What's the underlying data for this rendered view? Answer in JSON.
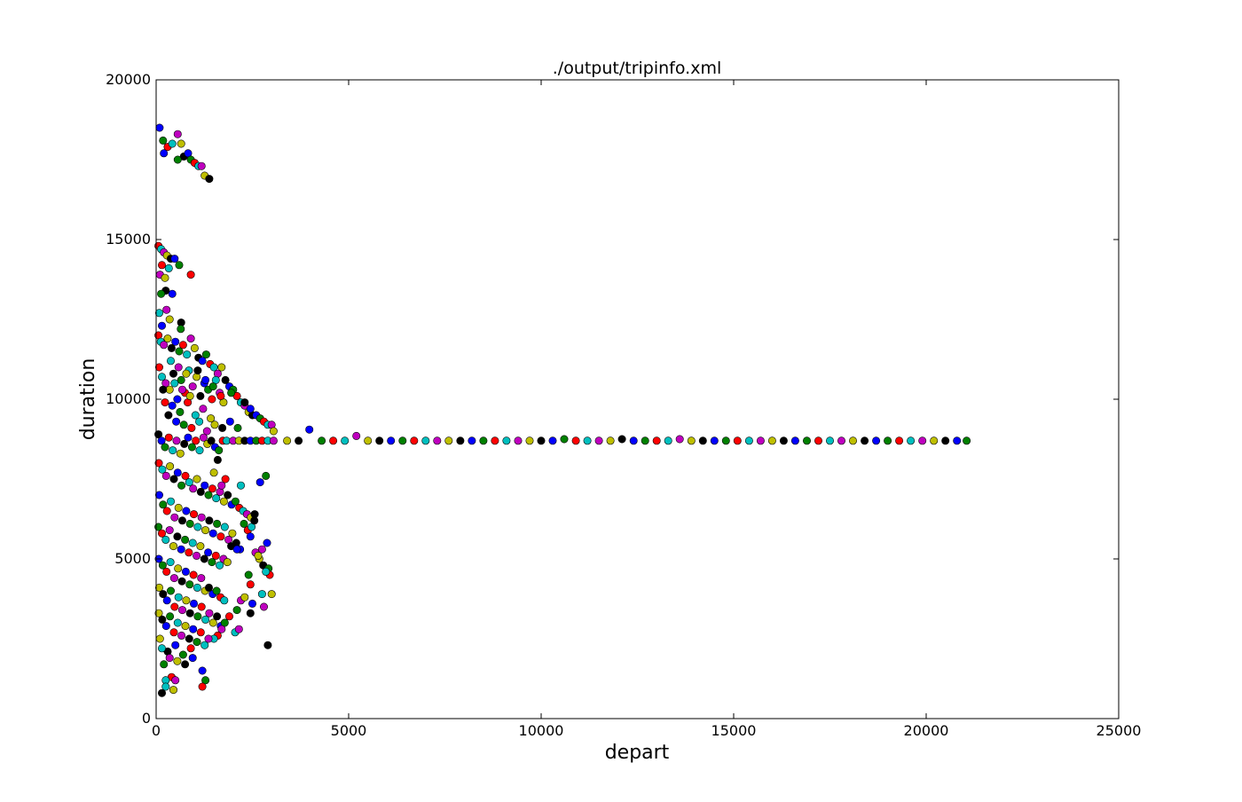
{
  "chart_data": {
    "type": "scatter",
    "title": "./output/tripinfo.xml",
    "xlabel": "depart",
    "ylabel": "duration",
    "xlim": [
      0,
      25000
    ],
    "ylim": [
      0,
      20000
    ],
    "x_ticks": [
      0,
      5000,
      10000,
      15000,
      20000,
      25000
    ],
    "y_ticks": [
      0,
      5000,
      10000,
      15000,
      20000
    ],
    "grid": false,
    "marker_colors": [
      "#0000ff",
      "#008000",
      "#ff0000",
      "#00bfbf",
      "#bf00bf",
      "#bfbf00",
      "#000000"
    ],
    "points": [
      [
        90,
        18500
      ],
      [
        180,
        18100
      ],
      [
        300,
        17900
      ],
      [
        420,
        18000
      ],
      [
        560,
        18300
      ],
      [
        650,
        18000
      ],
      [
        720,
        17600
      ],
      [
        830,
        17700
      ],
      [
        900,
        17500
      ],
      [
        1000,
        17400
      ],
      [
        1100,
        17300
      ],
      [
        1180,
        17300
      ],
      [
        1260,
        17000
      ],
      [
        1380,
        16900
      ],
      [
        200,
        17700
      ],
      [
        560,
        17500
      ],
      [
        60,
        14800
      ],
      [
        130,
        14700
      ],
      [
        200,
        14600
      ],
      [
        280,
        14500
      ],
      [
        380,
        14400
      ],
      [
        480,
        14400
      ],
      [
        600,
        14200
      ],
      [
        150,
        14200
      ],
      [
        330,
        14100
      ],
      [
        100,
        13900
      ],
      [
        230,
        13800
      ],
      [
        250,
        13400
      ],
      [
        420,
        13300
      ],
      [
        130,
        13300
      ],
      [
        900,
        13900
      ],
      [
        80,
        12700
      ],
      [
        270,
        12800
      ],
      [
        350,
        12500
      ],
      [
        650,
        12400
      ],
      [
        150,
        12300
      ],
      [
        640,
        12200
      ],
      [
        60,
        12000
      ],
      [
        120,
        11800
      ],
      [
        200,
        11700
      ],
      [
        300,
        11900
      ],
      [
        400,
        11600
      ],
      [
        500,
        11800
      ],
      [
        600,
        11500
      ],
      [
        700,
        11700
      ],
      [
        800,
        11400
      ],
      [
        900,
        11900
      ],
      [
        1000,
        11600
      ],
      [
        1100,
        11300
      ],
      [
        1200,
        11200
      ],
      [
        1300,
        11400
      ],
      [
        1400,
        11100
      ],
      [
        1500,
        11000
      ],
      [
        1600,
        10800
      ],
      [
        1700,
        11000
      ],
      [
        1800,
        10600
      ],
      [
        1900,
        10400
      ],
      [
        2000,
        10300
      ],
      [
        2100,
        10100
      ],
      [
        2200,
        9900
      ],
      [
        2300,
        9800
      ],
      [
        2400,
        9600
      ],
      [
        2500,
        9500
      ],
      [
        2600,
        9500
      ],
      [
        2700,
        9400
      ],
      [
        2800,
        9300
      ],
      [
        2900,
        9200
      ],
      [
        3000,
        9200
      ],
      [
        3050,
        9000
      ],
      [
        2300,
        9900
      ],
      [
        2450,
        9700
      ],
      [
        1950,
        10200
      ],
      [
        80,
        11000
      ],
      [
        150,
        10700
      ],
      [
        250,
        10500
      ],
      [
        350,
        10300
      ],
      [
        450,
        10800
      ],
      [
        550,
        10000
      ],
      [
        650,
        10600
      ],
      [
        750,
        10200
      ],
      [
        850,
        10900
      ],
      [
        950,
        10400
      ],
      [
        1050,
        10700
      ],
      [
        1150,
        10100
      ],
      [
        1250,
        10500
      ],
      [
        1350,
        10300
      ],
      [
        1450,
        10000
      ],
      [
        1550,
        10600
      ],
      [
        1650,
        10200
      ],
      [
        1750,
        9900
      ],
      [
        180,
        10300
      ],
      [
        420,
        9800
      ],
      [
        620,
        9600
      ],
      [
        820,
        9900
      ],
      [
        1020,
        9500
      ],
      [
        1220,
        9700
      ],
      [
        1420,
        9400
      ],
      [
        320,
        9500
      ],
      [
        520,
        9300
      ],
      [
        720,
        9200
      ],
      [
        920,
        9100
      ],
      [
        1120,
        9300
      ],
      [
        1320,
        9000
      ],
      [
        1520,
        9200
      ],
      [
        1720,
        9100
      ],
      [
        1920,
        9300
      ],
      [
        2120,
        9100
      ],
      [
        230,
        9900
      ],
      [
        480,
        10500
      ],
      [
        680,
        10300
      ],
      [
        880,
        10100
      ],
      [
        1080,
        10900
      ],
      [
        1280,
        10600
      ],
      [
        1480,
        10400
      ],
      [
        1680,
        10100
      ],
      [
        380,
        11200
      ],
      [
        580,
        11000
      ],
      [
        780,
        10800
      ],
      [
        60,
        8900
      ],
      [
        140,
        8700
      ],
      [
        230,
        8500
      ],
      [
        330,
        8800
      ],
      [
        430,
        8400
      ],
      [
        530,
        8700
      ],
      [
        630,
        8300
      ],
      [
        730,
        8600
      ],
      [
        830,
        8800
      ],
      [
        930,
        8500
      ],
      [
        1030,
        8700
      ],
      [
        1130,
        8400
      ],
      [
        1230,
        8800
      ],
      [
        1330,
        8600
      ],
      [
        1430,
        8700
      ],
      [
        1530,
        8500
      ],
      [
        1630,
        8400
      ],
      [
        1730,
        8700
      ],
      [
        1830,
        8700
      ],
      [
        2000,
        8700
      ],
      [
        2150,
        8700
      ],
      [
        2300,
        8700
      ],
      [
        2450,
        8700
      ],
      [
        2600,
        8700
      ],
      [
        2750,
        8700
      ],
      [
        2900,
        8700
      ],
      [
        3050,
        8700
      ],
      [
        3400,
        8700
      ],
      [
        3700,
        8700
      ],
      [
        3980,
        9050
      ],
      [
        4300,
        8700
      ],
      [
        4600,
        8700
      ],
      [
        4900,
        8700
      ],
      [
        5200,
        8850
      ],
      [
        5500,
        8700
      ],
      [
        5800,
        8700
      ],
      [
        6100,
        8700
      ],
      [
        6400,
        8700
      ],
      [
        6700,
        8700
      ],
      [
        7000,
        8700
      ],
      [
        7300,
        8700
      ],
      [
        7600,
        8700
      ],
      [
        7900,
        8700
      ],
      [
        8200,
        8700
      ],
      [
        8500,
        8700
      ],
      [
        8800,
        8700
      ],
      [
        9100,
        8700
      ],
      [
        9400,
        8700
      ],
      [
        9700,
        8700
      ],
      [
        10000,
        8700
      ],
      [
        10300,
        8700
      ],
      [
        10600,
        8750
      ],
      [
        10900,
        8700
      ],
      [
        11200,
        8700
      ],
      [
        11500,
        8700
      ],
      [
        11800,
        8700
      ],
      [
        12100,
        8750
      ],
      [
        12400,
        8700
      ],
      [
        12700,
        8700
      ],
      [
        13000,
        8700
      ],
      [
        13300,
        8700
      ],
      [
        13600,
        8750
      ],
      [
        13900,
        8700
      ],
      [
        14200,
        8700
      ],
      [
        14500,
        8700
      ],
      [
        14800,
        8700
      ],
      [
        15100,
        8700
      ],
      [
        15400,
        8700
      ],
      [
        15700,
        8700
      ],
      [
        16000,
        8700
      ],
      [
        16300,
        8700
      ],
      [
        16600,
        8700
      ],
      [
        16900,
        8700
      ],
      [
        17200,
        8700
      ],
      [
        17500,
        8700
      ],
      [
        17800,
        8700
      ],
      [
        18100,
        8700
      ],
      [
        18400,
        8700
      ],
      [
        18700,
        8700
      ],
      [
        19000,
        8700
      ],
      [
        19300,
        8700
      ],
      [
        19600,
        8700
      ],
      [
        19900,
        8700
      ],
      [
        20200,
        8700
      ],
      [
        20500,
        8700
      ],
      [
        20800,
        8700
      ],
      [
        21050,
        8700
      ],
      [
        70,
        8000
      ],
      [
        160,
        7800
      ],
      [
        260,
        7600
      ],
      [
        360,
        7900
      ],
      [
        460,
        7500
      ],
      [
        560,
        7700
      ],
      [
        660,
        7300
      ],
      [
        760,
        7600
      ],
      [
        860,
        7400
      ],
      [
        960,
        7200
      ],
      [
        1060,
        7500
      ],
      [
        1160,
        7100
      ],
      [
        1260,
        7300
      ],
      [
        1360,
        7000
      ],
      [
        1460,
        7200
      ],
      [
        1560,
        6900
      ],
      [
        1660,
        7100
      ],
      [
        1760,
        6800
      ],
      [
        1860,
        7000
      ],
      [
        1960,
        6700
      ],
      [
        2060,
        6800
      ],
      [
        2160,
        6600
      ],
      [
        2260,
        6500
      ],
      [
        2360,
        6400
      ],
      [
        2460,
        6300
      ],
      [
        2560,
        6400
      ],
      [
        2700,
        7400
      ],
      [
        2850,
        7600
      ],
      [
        1800,
        7500
      ],
      [
        2200,
        7300
      ],
      [
        1700,
        7300
      ],
      [
        1500,
        7700
      ],
      [
        1600,
        8100
      ],
      [
        80,
        7000
      ],
      [
        180,
        6700
      ],
      [
        280,
        6500
      ],
      [
        380,
        6800
      ],
      [
        480,
        6300
      ],
      [
        580,
        6600
      ],
      [
        680,
        6200
      ],
      [
        780,
        6500
      ],
      [
        880,
        6100
      ],
      [
        980,
        6400
      ],
      [
        1080,
        6000
      ],
      [
        1180,
        6300
      ],
      [
        1280,
        5900
      ],
      [
        1380,
        6200
      ],
      [
        1480,
        5800
      ],
      [
        1580,
        6100
      ],
      [
        1680,
        5700
      ],
      [
        1780,
        6000
      ],
      [
        1880,
        5600
      ],
      [
        1980,
        5800
      ],
      [
        2080,
        5500
      ],
      [
        2180,
        5300
      ],
      [
        2280,
        6100
      ],
      [
        2380,
        5900
      ],
      [
        2480,
        6000
      ],
      [
        2580,
        5200
      ],
      [
        2680,
        5000
      ],
      [
        2780,
        4800
      ],
      [
        2880,
        5500
      ],
      [
        2920,
        4700
      ],
      [
        2950,
        4500
      ],
      [
        2850,
        4600
      ],
      [
        2750,
        5300
      ],
      [
        2650,
        5100
      ],
      [
        2550,
        6200
      ],
      [
        2450,
        5700
      ],
      [
        60,
        6000
      ],
      [
        150,
        5800
      ],
      [
        250,
        5600
      ],
      [
        350,
        5900
      ],
      [
        450,
        5400
      ],
      [
        550,
        5700
      ],
      [
        650,
        5300
      ],
      [
        750,
        5600
      ],
      [
        850,
        5200
      ],
      [
        950,
        5500
      ],
      [
        1050,
        5100
      ],
      [
        1150,
        5400
      ],
      [
        1250,
        5000
      ],
      [
        1350,
        5200
      ],
      [
        1450,
        4900
      ],
      [
        1550,
        5100
      ],
      [
        1650,
        4800
      ],
      [
        1750,
        5000
      ],
      [
        1850,
        4900
      ],
      [
        1950,
        5400
      ],
      [
        2100,
        5300
      ],
      [
        2400,
        4500
      ],
      [
        2450,
        4200
      ],
      [
        2750,
        3900
      ],
      [
        2800,
        3500
      ],
      [
        3000,
        3900
      ],
      [
        2900,
        2300
      ],
      [
        70,
        5000
      ],
      [
        170,
        4800
      ],
      [
        270,
        4600
      ],
      [
        370,
        4900
      ],
      [
        470,
        4400
      ],
      [
        570,
        4700
      ],
      [
        670,
        4300
      ],
      [
        770,
        4600
      ],
      [
        870,
        4200
      ],
      [
        970,
        4500
      ],
      [
        1070,
        4100
      ],
      [
        1170,
        4400
      ],
      [
        1270,
        4000
      ],
      [
        1370,
        4100
      ],
      [
        1470,
        3900
      ],
      [
        1570,
        4000
      ],
      [
        1670,
        3800
      ],
      [
        1770,
        3700
      ],
      [
        2200,
        3700
      ],
      [
        2300,
        3800
      ],
      [
        2450,
        3300
      ],
      [
        2500,
        3600
      ],
      [
        2100,
        3400
      ],
      [
        1900,
        3200
      ],
      [
        2050,
        2700
      ],
      [
        2150,
        2800
      ],
      [
        80,
        4100
      ],
      [
        180,
        3900
      ],
      [
        280,
        3700
      ],
      [
        380,
        4000
      ],
      [
        480,
        3500
      ],
      [
        580,
        3800
      ],
      [
        680,
        3400
      ],
      [
        780,
        3700
      ],
      [
        880,
        3300
      ],
      [
        980,
        3600
      ],
      [
        1080,
        3200
      ],
      [
        1180,
        3500
      ],
      [
        1280,
        3100
      ],
      [
        1380,
        3300
      ],
      [
        1480,
        3000
      ],
      [
        1580,
        3200
      ],
      [
        1680,
        2900
      ],
      [
        1780,
        3000
      ],
      [
        1600,
        2600
      ],
      [
        1500,
        2500
      ],
      [
        1700,
        2800
      ],
      [
        70,
        3300
      ],
      [
        160,
        3100
      ],
      [
        260,
        2900
      ],
      [
        360,
        3200
      ],
      [
        460,
        2700
      ],
      [
        560,
        3000
      ],
      [
        660,
        2600
      ],
      [
        760,
        2900
      ],
      [
        860,
        2500
      ],
      [
        960,
        2800
      ],
      [
        1060,
        2400
      ],
      [
        1160,
        2700
      ],
      [
        1260,
        2300
      ],
      [
        1360,
        2500
      ],
      [
        100,
        2500
      ],
      [
        300,
        2100
      ],
      [
        500,
        2300
      ],
      [
        700,
        2000
      ],
      [
        900,
        2200
      ],
      [
        150,
        2200
      ],
      [
        350,
        1900
      ],
      [
        550,
        1800
      ],
      [
        750,
        1700
      ],
      [
        950,
        1900
      ],
      [
        200,
        1700
      ],
      [
        400,
        1300
      ],
      [
        250,
        1200
      ],
      [
        500,
        1200
      ],
      [
        450,
        900
      ],
      [
        150,
        800
      ],
      [
        1200,
        1500
      ],
      [
        1280,
        1200
      ],
      [
        1200,
        1000
      ],
      [
        250,
        1000
      ]
    ]
  }
}
